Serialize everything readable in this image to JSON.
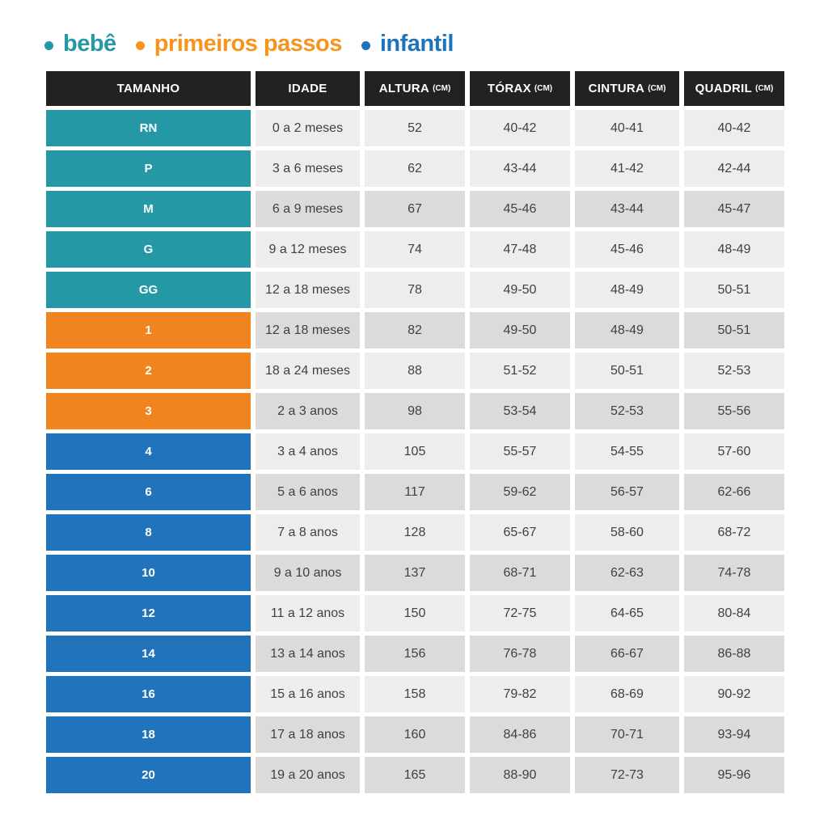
{
  "legend": {
    "items": [
      {
        "label": "bebê",
        "color": "#2598A6"
      },
      {
        "label": "primeiros passos",
        "color": "#F7941D"
      },
      {
        "label": "infantil",
        "color": "#1C75BC"
      }
    ]
  },
  "table": {
    "columns": [
      {
        "label": "TAMANHO",
        "unit": ""
      },
      {
        "label": "IDADE",
        "unit": ""
      },
      {
        "label": "ALTURA",
        "unit": "(CM)"
      },
      {
        "label": "TÓRAX",
        "unit": "(CM)"
      },
      {
        "label": "CINTURA",
        "unit": "(CM)"
      },
      {
        "label": "QUADRIL",
        "unit": "(CM)"
      }
    ],
    "rows": [
      {
        "size": "RN",
        "group": "bebe",
        "shade": "light",
        "idade": "0 a 2 meses",
        "altura": "52",
        "torax": "40-42",
        "cintura": "40-41",
        "quadril": "40-42"
      },
      {
        "size": "P",
        "group": "bebe",
        "shade": "light",
        "idade": "3 a 6 meses",
        "altura": "62",
        "torax": "43-44",
        "cintura": "41-42",
        "quadril": "42-44"
      },
      {
        "size": "M",
        "group": "bebe",
        "shade": "dark",
        "idade": "6 a 9 meses",
        "altura": "67",
        "torax": "45-46",
        "cintura": "43-44",
        "quadril": "45-47"
      },
      {
        "size": "G",
        "group": "bebe",
        "shade": "light",
        "idade": "9 a 12 meses",
        "altura": "74",
        "torax": "47-48",
        "cintura": "45-46",
        "quadril": "48-49"
      },
      {
        "size": "GG",
        "group": "bebe",
        "shade": "light",
        "idade": "12 a 18 meses",
        "altura": "78",
        "torax": "49-50",
        "cintura": "48-49",
        "quadril": "50-51"
      },
      {
        "size": "1",
        "group": "primeiros-passos",
        "shade": "dark",
        "idade": "12 a 18 meses",
        "altura": "82",
        "torax": "49-50",
        "cintura": "48-49",
        "quadril": "50-51"
      },
      {
        "size": "2",
        "group": "primeiros-passos",
        "shade": "light",
        "idade": "18 a 24 meses",
        "altura": "88",
        "torax": "51-52",
        "cintura": "50-51",
        "quadril": "52-53"
      },
      {
        "size": "3",
        "group": "primeiros-passos",
        "shade": "dark",
        "idade": "2 a 3 anos",
        "altura": "98",
        "torax": "53-54",
        "cintura": "52-53",
        "quadril": "55-56"
      },
      {
        "size": "4",
        "group": "infantil",
        "shade": "light",
        "idade": "3 a 4 anos",
        "altura": "105",
        "torax": "55-57",
        "cintura": "54-55",
        "quadril": "57-60"
      },
      {
        "size": "6",
        "group": "infantil",
        "shade": "dark",
        "idade": "5 a 6 anos",
        "altura": "117",
        "torax": "59-62",
        "cintura": "56-57",
        "quadril": "62-66"
      },
      {
        "size": "8",
        "group": "infantil",
        "shade": "light",
        "idade": "7 a 8 anos",
        "altura": "128",
        "torax": "65-67",
        "cintura": "58-60",
        "quadril": "68-72"
      },
      {
        "size": "10",
        "group": "infantil",
        "shade": "dark",
        "idade": "9 a 10 anos",
        "altura": "137",
        "torax": "68-71",
        "cintura": "62-63",
        "quadril": "74-78"
      },
      {
        "size": "12",
        "group": "infantil",
        "shade": "light",
        "idade": "11 a 12 anos",
        "altura": "150",
        "torax": "72-75",
        "cintura": "64-65",
        "quadril": "80-84"
      },
      {
        "size": "14",
        "group": "infantil",
        "shade": "dark",
        "idade": "13 a 14 anos",
        "altura": "156",
        "torax": "76-78",
        "cintura": "66-67",
        "quadril": "86-88"
      },
      {
        "size": "16",
        "group": "infantil",
        "shade": "light",
        "idade": "15 a 16 anos",
        "altura": "158",
        "torax": "79-82",
        "cintura": "68-69",
        "quadril": "90-92"
      },
      {
        "size": "18",
        "group": "infantil",
        "shade": "dark",
        "idade": "17 a 18 anos",
        "altura": "160",
        "torax": "84-86",
        "cintura": "70-71",
        "quadril": "93-94"
      },
      {
        "size": "20",
        "group": "infantil",
        "shade": "dark",
        "idade": "19 a 20 anos",
        "altura": "165",
        "torax": "88-90",
        "cintura": "72-73",
        "quadril": "95-96"
      }
    ]
  },
  "colors": {
    "header_bg": "#242122",
    "header_text": "#FFFFFF",
    "row_light": "#EEEDEB",
    "row_dark": "#DCDBD9",
    "cell_text": "#414042",
    "groups": {
      "bebe": "#2598A6",
      "primeiros-passos": "#F0851F",
      "infantil": "#2173BC"
    }
  },
  "chart_data": {
    "type": "table",
    "title": "",
    "columns": [
      "TAMANHO",
      "IDADE",
      "ALTURA (CM)",
      "TÓRAX (CM)",
      "CINTURA (CM)",
      "QUADRIL (CM)"
    ],
    "rows": [
      [
        "RN",
        "0 a 2 meses",
        "52",
        "40-42",
        "40-41",
        "40-42"
      ],
      [
        "P",
        "3 a 6 meses",
        "62",
        "43-44",
        "41-42",
        "42-44"
      ],
      [
        "M",
        "6 a 9 meses",
        "67",
        "45-46",
        "43-44",
        "45-47"
      ],
      [
        "G",
        "9 a 12 meses",
        "74",
        "47-48",
        "45-46",
        "48-49"
      ],
      [
        "GG",
        "12 a 18 meses",
        "78",
        "49-50",
        "48-49",
        "50-51"
      ],
      [
        "1",
        "12 a 18 meses",
        "82",
        "49-50",
        "48-49",
        "50-51"
      ],
      [
        "2",
        "18 a 24 meses",
        "88",
        "51-52",
        "50-51",
        "52-53"
      ],
      [
        "3",
        "2 a 3 anos",
        "98",
        "53-54",
        "52-53",
        "55-56"
      ],
      [
        "4",
        "3 a 4 anos",
        "105",
        "55-57",
        "54-55",
        "57-60"
      ],
      [
        "6",
        "5 a 6 anos",
        "117",
        "59-62",
        "56-57",
        "62-66"
      ],
      [
        "8",
        "7 a 8 anos",
        "128",
        "65-67",
        "58-60",
        "68-72"
      ],
      [
        "10",
        "9 a 10 anos",
        "137",
        "68-71",
        "62-63",
        "74-78"
      ],
      [
        "12",
        "11 a 12 anos",
        "150",
        "72-75",
        "64-65",
        "80-84"
      ],
      [
        "14",
        "13 a 14 anos",
        "156",
        "76-78",
        "66-67",
        "86-88"
      ],
      [
        "16",
        "15 a 16 anos",
        "158",
        "79-82",
        "68-69",
        "90-92"
      ],
      [
        "18",
        "17 a 18 anos",
        "160",
        "84-86",
        "70-71",
        "93-94"
      ],
      [
        "20",
        "19 a 20 anos",
        "165",
        "88-90",
        "72-73",
        "95-96"
      ]
    ],
    "row_groups": {
      "bebê": [
        "RN",
        "P",
        "M",
        "G",
        "GG"
      ],
      "primeiros passos": [
        "1",
        "2",
        "3"
      ],
      "infantil": [
        "4",
        "6",
        "8",
        "10",
        "12",
        "14",
        "16",
        "18",
        "20"
      ]
    },
    "legend_position": "top-left"
  }
}
